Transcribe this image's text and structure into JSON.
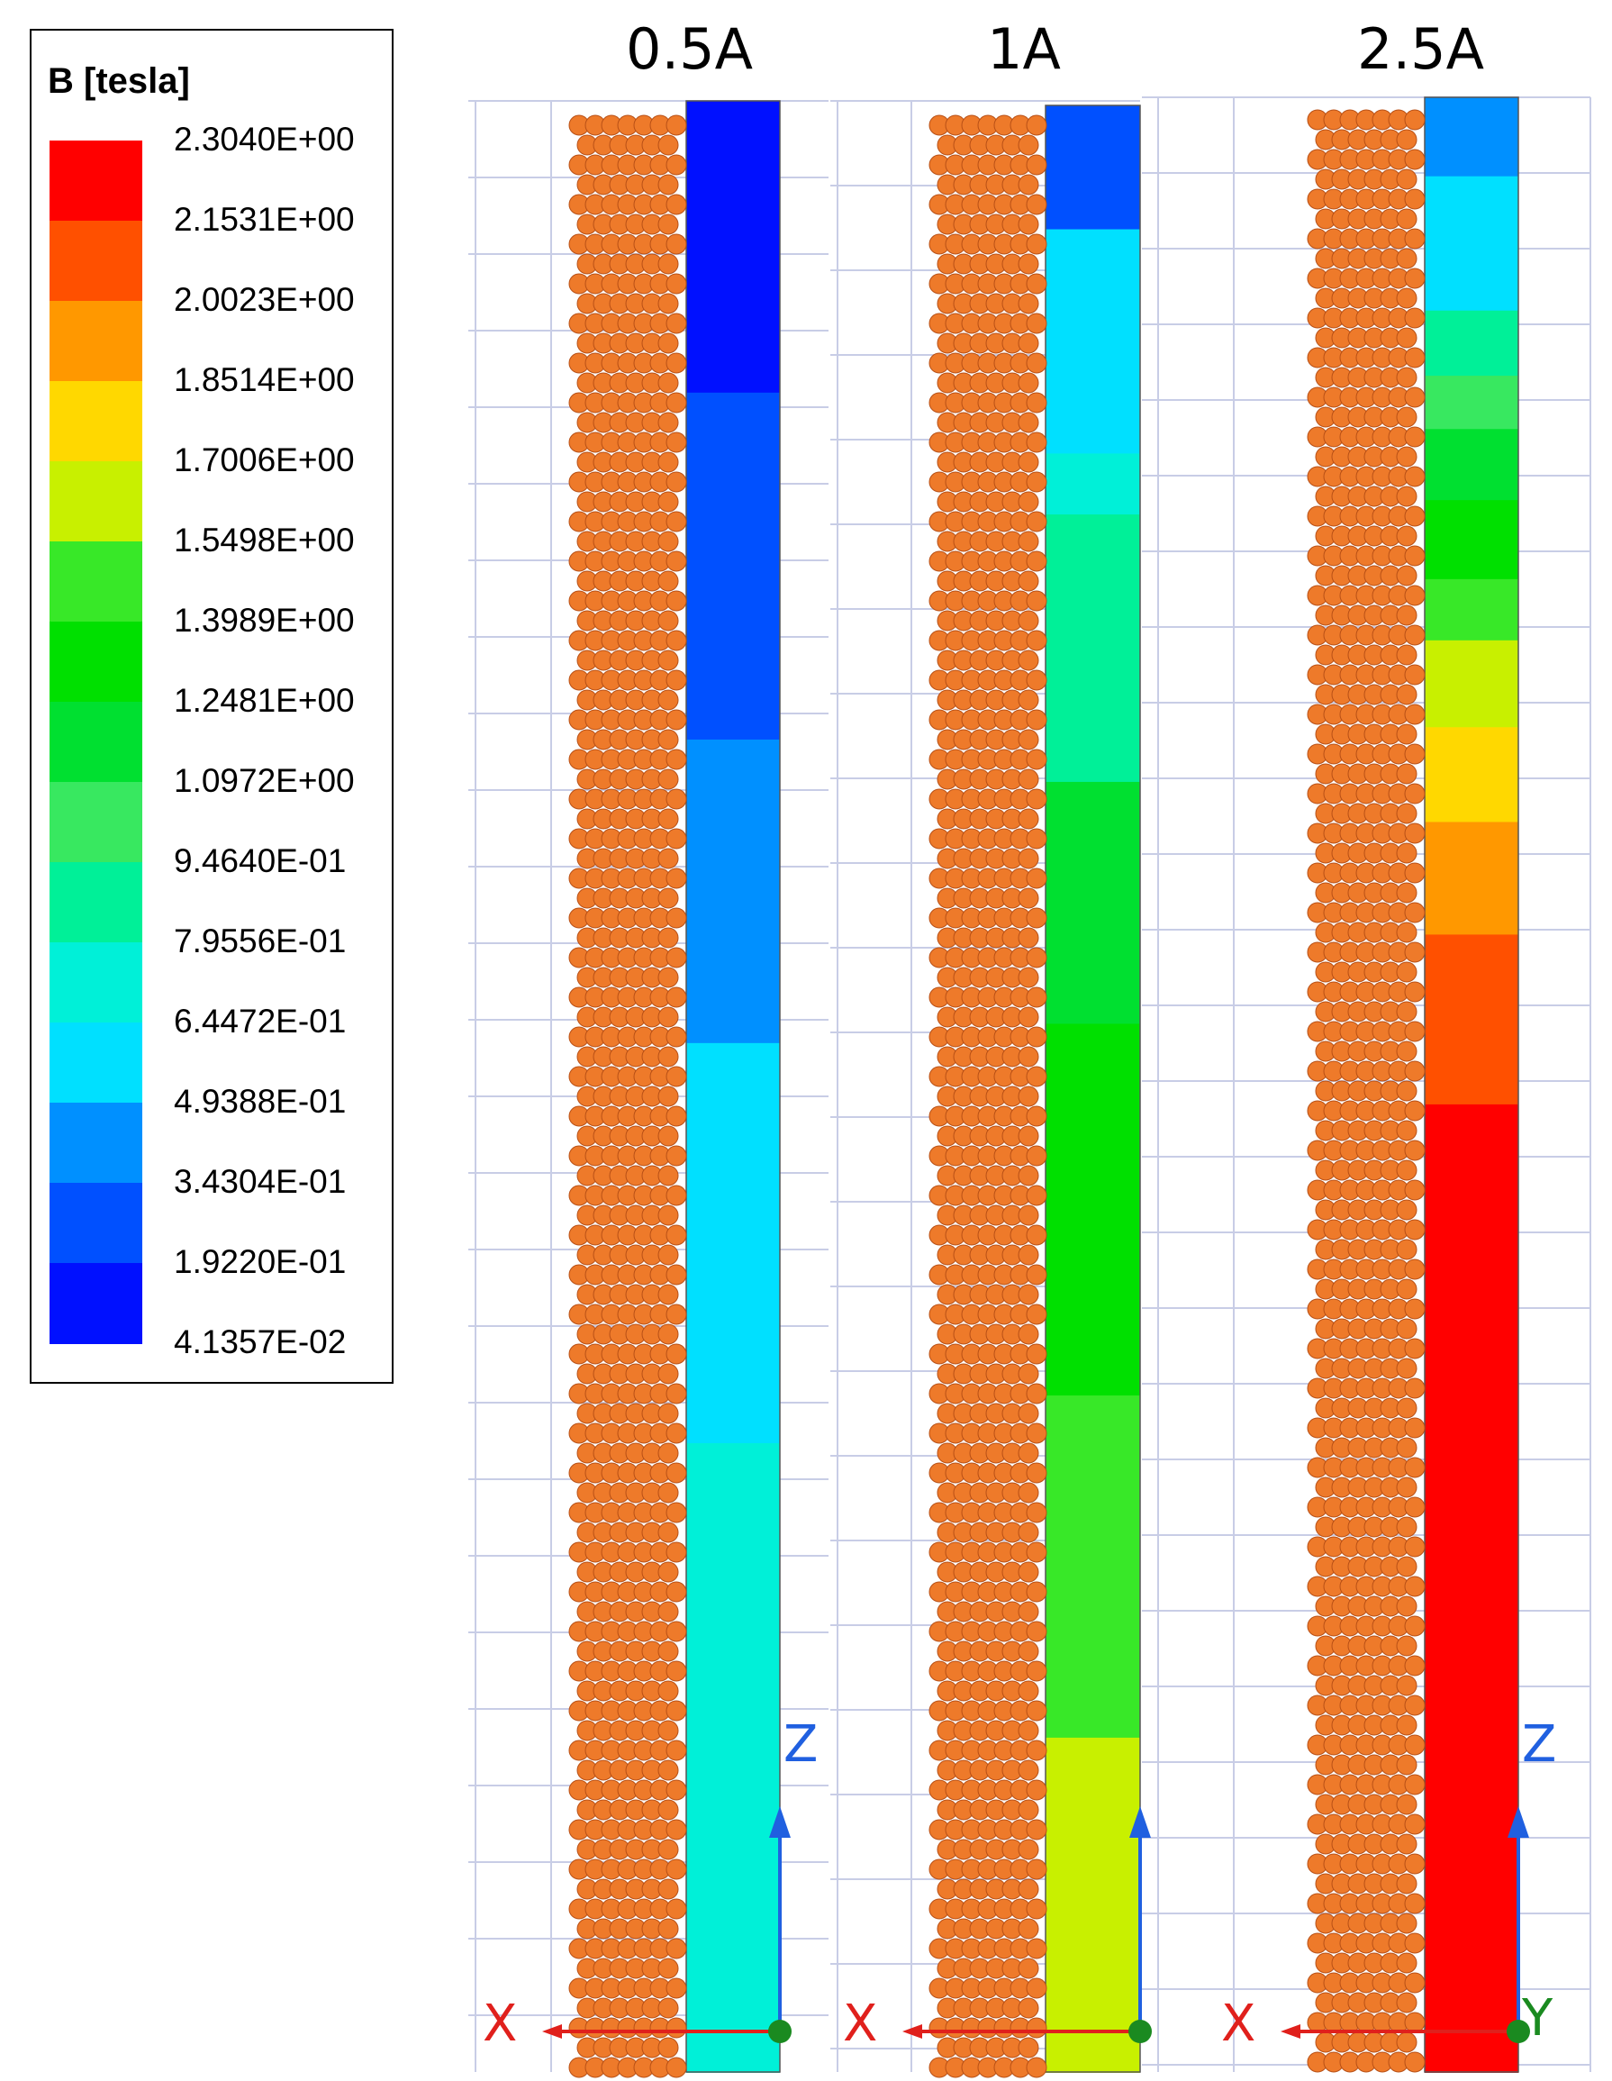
{
  "legend": {
    "title": "B [tesla]",
    "labels": [
      "2.3040E+00",
      "2.1531E+00",
      "2.0023E+00",
      "1.8514E+00",
      "1.7006E+00",
      "1.5498E+00",
      "1.3989E+00",
      "1.2481E+00",
      "1.0972E+00",
      "9.4640E-01",
      "7.9556E-01",
      "6.4472E-01",
      "4.9388E-01",
      "3.4304E-01",
      "1.9220E-01",
      "4.1357E-02"
    ],
    "colors": [
      "#ff0000",
      "#ff5000",
      "#ff9800",
      "#ffd800",
      "#c8f000",
      "#38e828",
      "#00e000",
      "#00e030",
      "#38e860",
      "#00f098",
      "#00f0d8",
      "#00e0ff",
      "#0090ff",
      "#0050ff",
      "#0010ff"
    ]
  },
  "panels": [
    {
      "title": "0.5A",
      "bands": [
        {
          "from": 1.0,
          "to": 0.852,
          "color": "#0010ff"
        },
        {
          "from": 0.852,
          "to": 0.676,
          "color": "#0050ff"
        },
        {
          "from": 0.676,
          "to": 0.522,
          "color": "#0090ff"
        },
        {
          "from": 0.522,
          "to": 0.319,
          "color": "#00e0ff"
        },
        {
          "from": 0.319,
          "to": 0.0,
          "color": "#00f0d8"
        }
      ]
    },
    {
      "title": "1A",
      "bands": [
        {
          "from": 1.0,
          "to": 0.937,
          "color": "#0050ff"
        },
        {
          "from": 0.937,
          "to": 0.823,
          "color": "#00e0ff"
        },
        {
          "from": 0.823,
          "to": 0.792,
          "color": "#00f0d8"
        },
        {
          "from": 0.792,
          "to": 0.656,
          "color": "#00f098"
        },
        {
          "from": 0.656,
          "to": 0.533,
          "color": "#00e030"
        },
        {
          "from": 0.533,
          "to": 0.344,
          "color": "#00e000"
        },
        {
          "from": 0.344,
          "to": 0.17,
          "color": "#38e828"
        },
        {
          "from": 0.17,
          "to": 0.0,
          "color": "#c8f000"
        }
      ]
    },
    {
      "title": "2.5A",
      "bands": [
        {
          "from": 1.0,
          "to": 0.96,
          "color": "#0090ff"
        },
        {
          "from": 0.96,
          "to": 0.892,
          "color": "#00e0ff"
        },
        {
          "from": 0.892,
          "to": 0.859,
          "color": "#00f098"
        },
        {
          "from": 0.859,
          "to": 0.832,
          "color": "#38e860"
        },
        {
          "from": 0.832,
          "to": 0.796,
          "color": "#00e030"
        },
        {
          "from": 0.796,
          "to": 0.756,
          "color": "#00e000"
        },
        {
          "from": 0.756,
          "to": 0.725,
          "color": "#38e828"
        },
        {
          "from": 0.725,
          "to": 0.681,
          "color": "#c8f000"
        },
        {
          "from": 0.681,
          "to": 0.633,
          "color": "#ffd800"
        },
        {
          "from": 0.633,
          "to": 0.576,
          "color": "#ff9800"
        },
        {
          "from": 0.576,
          "to": 0.49,
          "color": "#ff5000"
        },
        {
          "from": 0.49,
          "to": 0.0,
          "color": "#ff0000"
        }
      ]
    }
  ],
  "axes": [
    {
      "x_label": "X",
      "z_label": "Z",
      "y_label": ""
    },
    {
      "x_label": "X",
      "z_label": "",
      "y_label": ""
    },
    {
      "x_label": "X",
      "z_label": "Z",
      "y_label": "Y"
    }
  ],
  "colors": {
    "coil": "#ee7a2a",
    "coil_dark": "#b85016",
    "grid": "#c8cde6",
    "axis_arrow_up": "#2060e0",
    "axis_arrow_x": "#e0201c",
    "axis_origin": "#1a8a20"
  }
}
